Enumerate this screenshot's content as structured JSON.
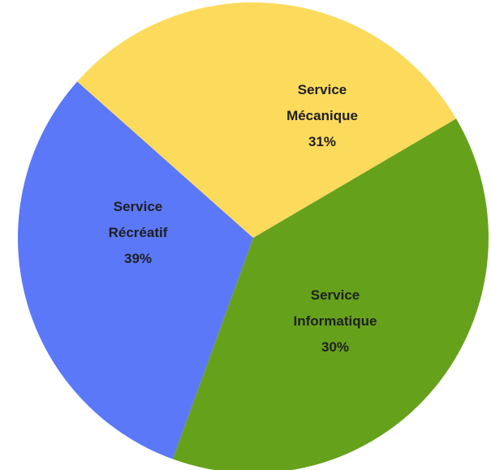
{
  "chart_data": {
    "type": "pie",
    "title": "",
    "slices": [
      {
        "label_lines": [
          "Service",
          "Mécanique"
        ],
        "value": 31,
        "display": "31%",
        "color": "#5b78f8"
      },
      {
        "label_lines": [
          "Service",
          "Informatique"
        ],
        "value": 30,
        "display": "30%",
        "color": "#fcda5c"
      },
      {
        "label_lines": [
          "Service",
          "Récréatif"
        ],
        "value": 39,
        "display": "39%",
        "color": "#66a11c"
      }
    ],
    "legend": "none",
    "labels": "inside-slices"
  }
}
